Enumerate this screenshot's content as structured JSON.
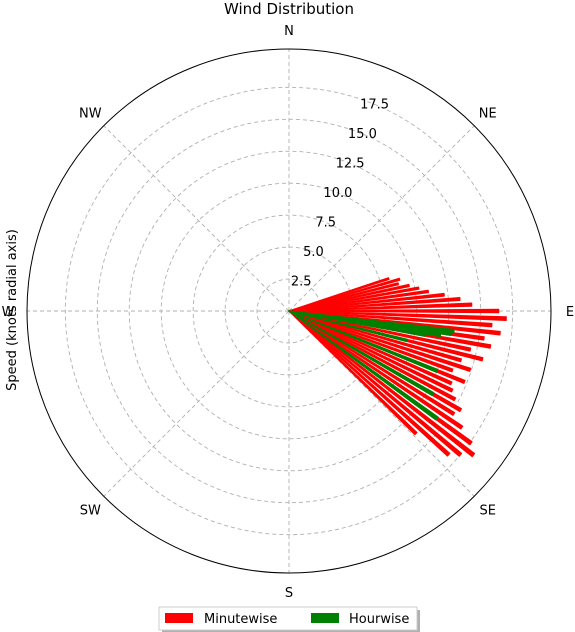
{
  "chart_data": {
    "type": "polar-bar",
    "title": "Wind Distribution",
    "ylabel": "Speed (knots radial axis)",
    "direction_labels": [
      "N",
      "NE",
      "E",
      "SE",
      "S",
      "SW",
      "W",
      "NW"
    ],
    "radial_tick_labels": [
      "2.5",
      "5.0",
      "7.5",
      "10.0",
      "12.5",
      "15.0",
      "17.5"
    ],
    "radial_ticks": [
      2.5,
      5.0,
      7.5,
      10.0,
      12.5,
      15.0,
      17.5
    ],
    "rmax": 20.5,
    "grid": true,
    "legend_position": "bottom",
    "series": [
      {
        "name": "Minutewise",
        "color": "#ff0000",
        "bars": [
          {
            "angle": 72,
            "value": 8.2
          },
          {
            "angle": 74,
            "value": 9.0
          },
          {
            "angle": 76,
            "value": 8.8
          },
          {
            "angle": 78,
            "value": 9.6
          },
          {
            "angle": 80,
            "value": 10.3
          },
          {
            "angle": 82,
            "value": 11.0
          },
          {
            "angle": 84,
            "value": 12.2
          },
          {
            "angle": 86,
            "value": 13.4
          },
          {
            "angle": 88,
            "value": 14.3
          },
          {
            "angle": 90,
            "value": 16.4
          },
          {
            "angle": 92,
            "value": 17.0
          },
          {
            "angle": 94,
            "value": 15.9
          },
          {
            "angle": 96,
            "value": 16.6
          },
          {
            "angle": 98,
            "value": 15.4
          },
          {
            "angle": 100,
            "value": 16.0
          },
          {
            "angle": 102,
            "value": 14.5
          },
          {
            "angle": 104,
            "value": 15.6
          },
          {
            "angle": 106,
            "value": 14.0
          },
          {
            "angle": 108,
            "value": 14.9
          },
          {
            "angle": 110,
            "value": 13.6
          },
          {
            "angle": 112,
            "value": 14.8
          },
          {
            "angle": 114,
            "value": 13.9
          },
          {
            "angle": 116,
            "value": 14.2
          },
          {
            "angle": 118,
            "value": 14.7
          },
          {
            "angle": 120,
            "value": 15.5
          },
          {
            "angle": 122,
            "value": 15.2
          },
          {
            "angle": 124,
            "value": 16.3
          },
          {
            "angle": 126,
            "value": 17.6
          },
          {
            "angle": 128,
            "value": 18.3
          },
          {
            "angle": 130,
            "value": 17.5
          },
          {
            "angle": 132,
            "value": 16.8
          },
          {
            "angle": 134,
            "value": 13.8
          }
        ]
      },
      {
        "name": "Hourwise",
        "color": "#008000",
        "bars": [
          {
            "angle": 97,
            "value": 13.0
          },
          {
            "angle": 98,
            "value": 12.8
          },
          {
            "angle": 99,
            "value": 12.0
          },
          {
            "angle": 100,
            "value": 10.8
          },
          {
            "angle": 104,
            "value": 9.5
          },
          {
            "angle": 112,
            "value": 12.5
          },
          {
            "angle": 120,
            "value": 13.0
          },
          {
            "angle": 126,
            "value": 14.3
          }
        ]
      }
    ],
    "legend": {
      "items": [
        {
          "label": "Minutewise",
          "color": "#ff0000"
        },
        {
          "label": "Hourwise",
          "color": "#008000"
        }
      ]
    }
  }
}
